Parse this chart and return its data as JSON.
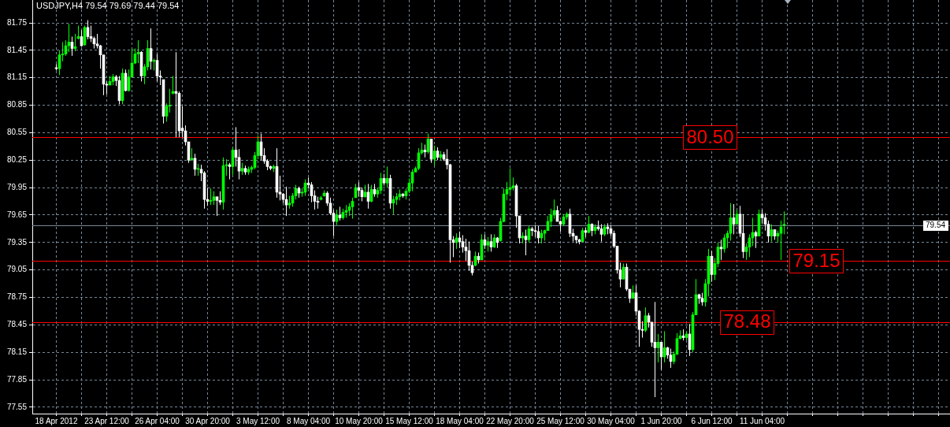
{
  "chart_data": {
    "type": "candlestick",
    "title": "USDJPY,H4 79.54 79.69 79.44 79.54",
    "grid": true,
    "ylim": [
      77.48,
      82.0
    ],
    "yticks": [
      77.55,
      77.85,
      78.15,
      78.45,
      78.75,
      79.05,
      79.35,
      79.65,
      79.95,
      80.25,
      80.55,
      80.85,
      81.15,
      81.45,
      81.75
    ],
    "ref_lines": [
      {
        "axis": "y",
        "value": 80.5,
        "label": "80.50",
        "color": "#ff0000"
      },
      {
        "axis": "y",
        "value": 79.54,
        "label": "79.54",
        "color": "#778899"
      },
      {
        "axis": "y",
        "value": 79.15,
        "label": "79.15",
        "color": "#ff0000"
      },
      {
        "axis": "y",
        "value": 78.48,
        "label": "78.48",
        "color": "#ff0000"
      }
    ],
    "categories": [
      "18 Apr 2012",
      null,
      null,
      null,
      null,
      null,
      null,
      null,
      null,
      null,
      null,
      null,
      null,
      null,
      null,
      null,
      "23 Apr 12:00",
      null,
      null,
      null,
      null,
      null,
      null,
      null,
      null,
      null,
      null,
      null,
      null,
      null,
      null,
      null,
      "26 Apr 04:00",
      null,
      null,
      null,
      null,
      null,
      null,
      null,
      null,
      null,
      null,
      null,
      null,
      null,
      null,
      null,
      "30 Apr 20:00",
      null,
      null,
      null,
      null,
      null,
      null,
      null,
      null,
      null,
      null,
      null,
      null,
      null,
      null,
      null,
      "3 May 12:00",
      null,
      null,
      null,
      null,
      null,
      null,
      null,
      null,
      null,
      null,
      null,
      null,
      null,
      null,
      null,
      "8 May 04:00",
      null,
      null,
      null,
      null,
      null,
      null,
      null,
      null,
      null,
      null,
      null,
      null,
      null,
      null,
      null,
      "10 May 20:00",
      null,
      null,
      null,
      null,
      null,
      null,
      null,
      null,
      null,
      null,
      null,
      null,
      null,
      null,
      null,
      "15 May 12:00",
      null,
      null,
      null,
      null,
      null,
      null,
      null,
      null,
      null,
      null,
      null,
      null,
      null,
      null,
      null,
      "18 May 04:00",
      null,
      null,
      null,
      null,
      null,
      null,
      null,
      null,
      null,
      null,
      null,
      null,
      null,
      null,
      null,
      "22 May 20:00",
      null,
      null,
      null,
      null,
      null,
      null,
      null,
      null,
      null,
      null,
      null,
      null,
      null,
      null,
      null,
      "25 May 12:00",
      null,
      null,
      null,
      null,
      null,
      null,
      null,
      null,
      null,
      null,
      null,
      null,
      null,
      null,
      null,
      "30 May 04:00",
      null,
      null,
      null,
      null,
      null,
      null,
      null,
      null,
      null,
      null,
      null,
      null,
      null,
      null,
      null,
      "1 Jun 20:00",
      null,
      null,
      null,
      null,
      null,
      null,
      null,
      null,
      null,
      null,
      null,
      null,
      null,
      null,
      null,
      "6 Jun 12:00",
      null,
      null,
      null,
      null,
      null,
      null,
      null,
      null,
      null,
      null,
      null,
      null,
      null,
      null,
      null,
      "11 Jun 04:00",
      null,
      null,
      null,
      null,
      null,
      null,
      null
    ],
    "colors": [
      "#ffffff",
      "#00ff00",
      "#00ff00",
      "#00ff00",
      "#00ff00",
      "#ffffff",
      "#00ff00",
      "#00ff00",
      "#ffffff",
      "#00ff00",
      "#ffffff",
      "#ffffff",
      "#ffffff",
      "#ffffff",
      "#ffffff",
      "#ffffff",
      "#ffffff",
      "#00ff00",
      "#00ff00",
      "#ffffff",
      "#ffffff",
      "#00ff00",
      "#ffffff",
      "#00ff00",
      "#00ff00",
      "#00ff00",
      "#00ff00",
      "#ffffff",
      "#00ff00",
      "#00ff00",
      "#ffffff",
      "#00ff00",
      "#ffffff",
      "#ffffff",
      "#ffffff",
      "#00ff00",
      "#00ff00",
      "#00ff00",
      "#ffffff",
      "#ffffff",
      "#ffffff",
      "#ffffff",
      "#ffffff",
      "#00ff00",
      "#ffffff",
      "#00ff00",
      "#ffffff",
      "#ffffff",
      "#ffffff",
      "#00ff00",
      "#00ff00",
      "#ffffff",
      "#ffffff",
      "#00ff00",
      "#00ff00",
      "#ffffff",
      "#00ff00",
      "#ffffff",
      "#ffffff",
      "#00ff00",
      "#ffffff",
      "#00ff00",
      "#00ff00",
      "#00ff00",
      "#00ff00",
      "#ffffff",
      "#ffffff",
      "#ffffff",
      "#ffffff",
      "#00ff00",
      "#ffffff",
      "#ffffff",
      "#ffffff",
      "#ffffff",
      "#00ff00",
      "#00ff00",
      "#00ff00",
      "#ffffff",
      "#00ff00",
      "#00ff00",
      "#ffffff",
      "#ffffff",
      "#ffffff",
      "#ffffff",
      "#00ff00",
      "#00ff00",
      "#ffffff",
      "#ffffff",
      "#ffffff",
      "#00ff00",
      "#ffffff",
      "#00ff00",
      "#00ff00",
      "#00ff00",
      "#00ff00",
      "#00ff00",
      "#ffffff",
      "#ffffff",
      "#00ff00",
      "#ffffff",
      "#00ff00",
      "#ffffff",
      "#00ff00",
      "#00ff00",
      "#ffffff",
      "#00ff00",
      "#ffffff",
      "#00ff00",
      "#00ff00",
      "#00ff00",
      "#ffffff",
      "#00ff00",
      "#00ff00",
      "#00ff00",
      "#00ff00",
      "#00ff00",
      "#00ff00",
      "#ffffff",
      "#00ff00",
      "#ffffff",
      "#00ff00",
      "#ffffff",
      "#00ff00",
      "#ffffff",
      "#ffffff",
      "#ffffff",
      "#ffffff",
      "#00ff00",
      "#ffffff",
      "#ffffff",
      "#ffffff",
      "#ffffff",
      "#ffffff",
      "#00ff00",
      "#ffffff",
      "#00ff00",
      "#ffffff",
      "#00ff00",
      "#ffffff",
      "#00ff00",
      "#ffffff",
      "#00ff00",
      "#00ff00",
      "#00ff00",
      "#00ff00",
      "#00ff00",
      "#ffffff",
      "#ffffff",
      "#00ff00",
      "#ffffff",
      "#00ff00",
      "#ffffff",
      "#ffffff",
      "#ffffff",
      "#00ff00",
      "#00ff00",
      "#00ff00",
      "#00ff00",
      "#00ff00",
      "#ffffff",
      "#ffffff",
      "#00ff00",
      "#00ff00",
      "#ffffff",
      "#ffffff",
      "#ffffff",
      "#ffffff",
      "#00ff00",
      "#ffffff",
      "#00ff00",
      "#ffffff",
      "#00ff00",
      "#ffffff",
      "#ffffff",
      "#00ff00",
      "#ffffff",
      "#ffffff",
      "#ffffff",
      "#ffffff",
      "#ffffff",
      "#00ff00",
      "#ffffff",
      "#ffffff",
      "#00ff00",
      "#ffffff",
      "#ffffff",
      "#ffffff",
      "#00ff00",
      "#ffffff",
      "#ffffff",
      "#ffffff",
      "#00ff00",
      "#ffffff",
      "#00ff00",
      "#ffffff",
      "#ffffff",
      "#00ff00",
      "#00ff00",
      "#00ff00",
      "#ffffff",
      "#00ff00",
      "#ffffff",
      "#00ff00",
      "#00ff00",
      "#ffffff",
      "#ffffff",
      "#00ff00",
      "#00ff00",
      "#ffffff",
      "#00ff00",
      "#00ff00",
      "#ffffff",
      "#00ff00",
      "#00ff00",
      "#00ff00",
      "#ffffff",
      "#00ff00",
      "#ffffff",
      "#ffffff",
      "#00ff00",
      "#00ff00",
      "#00ff00",
      "#ffffff",
      "#00ff00",
      "#ffffff",
      "#ffffff",
      "#ffffff",
      "#00ff00",
      "#ffffff",
      "#00ff00",
      "#00ff00",
      "#00ff00"
    ],
    "ohlc": [
      [
        81.26,
        81.3,
        81.23,
        81.25
      ],
      [
        81.25,
        81.45,
        81.18,
        81.4
      ],
      [
        81.4,
        81.54,
        81.33,
        81.41
      ],
      [
        81.41,
        81.56,
        81.39,
        81.5
      ],
      [
        81.5,
        81.74,
        81.43,
        81.54
      ],
      [
        81.54,
        81.6,
        81.39,
        81.47
      ],
      [
        81.47,
        81.63,
        81.44,
        81.49
      ],
      [
        81.58,
        81.72,
        81.57,
        81.6
      ],
      [
        81.6,
        81.67,
        81.49,
        81.5
      ],
      [
        81.51,
        81.72,
        81.5,
        81.7
      ],
      [
        81.7,
        81.78,
        81.57,
        81.6
      ],
      [
        81.6,
        81.72,
        81.54,
        81.58
      ],
      [
        81.58,
        81.6,
        81.47,
        81.52
      ],
      [
        81.52,
        81.63,
        81.47,
        81.5
      ],
      [
        81.5,
        81.51,
        81.25,
        81.4
      ],
      [
        81.4,
        81.4,
        80.96,
        81.08
      ],
      [
        81.08,
        81.11,
        80.97,
        81.07
      ],
      [
        81.07,
        81.17,
        81.07,
        81.11
      ],
      [
        81.11,
        81.19,
        81.07,
        81.16
      ],
      [
        81.16,
        81.18,
        81.06,
        81.12
      ],
      [
        81.12,
        81.17,
        80.86,
        80.9
      ],
      [
        80.9,
        81.25,
        80.86,
        81.2
      ],
      [
        81.2,
        81.24,
        81.0,
        81.01
      ],
      [
        81.01,
        81.24,
        81.0,
        81.16
      ],
      [
        81.16,
        81.47,
        81.16,
        81.31
      ],
      [
        81.31,
        81.47,
        81.3,
        81.41
      ],
      [
        81.41,
        81.56,
        81.31,
        81.43
      ],
      [
        81.43,
        81.44,
        81.11,
        81.17
      ],
      [
        81.17,
        81.3,
        81.08,
        81.27
      ],
      [
        81.27,
        81.56,
        81.23,
        81.47
      ],
      [
        81.47,
        81.69,
        81.24,
        81.33
      ],
      [
        81.33,
        81.36,
        81.23,
        81.34
      ],
      [
        81.34,
        81.41,
        81.11,
        81.17
      ],
      [
        81.17,
        81.23,
        81.07,
        81.16
      ],
      [
        81.13,
        81.13,
        80.65,
        80.73
      ],
      [
        80.73,
        80.87,
        80.67,
        80.84
      ],
      [
        80.84,
        81.03,
        80.77,
        80.85
      ],
      [
        80.98,
        81.17,
        80.97,
        81.0
      ],
      [
        81.0,
        81.43,
        80.5,
        80.98
      ],
      [
        80.98,
        81.0,
        80.5,
        80.57
      ],
      [
        80.6,
        80.84,
        80.5,
        80.57
      ],
      [
        80.57,
        80.63,
        80.41,
        80.45
      ],
      [
        80.45,
        80.45,
        80.22,
        80.25
      ],
      [
        80.25,
        80.38,
        80.25,
        80.27
      ],
      [
        80.27,
        80.32,
        80.08,
        80.15
      ],
      [
        80.15,
        80.21,
        80.08,
        80.15
      ],
      [
        80.15,
        80.2,
        80.02,
        80.11
      ],
      [
        80.11,
        80.13,
        79.72,
        79.82
      ],
      [
        79.82,
        79.95,
        79.75,
        79.8
      ],
      [
        79.8,
        79.94,
        79.76,
        79.81
      ],
      [
        79.81,
        79.91,
        79.76,
        79.85
      ],
      [
        79.85,
        79.85,
        79.64,
        79.81
      ],
      [
        79.81,
        79.91,
        79.76,
        79.79
      ],
      [
        79.79,
        80.28,
        79.71,
        80.19
      ],
      [
        80.19,
        80.26,
        80.08,
        80.2
      ],
      [
        80.2,
        80.22,
        80.04,
        80.18
      ],
      [
        80.18,
        80.39,
        80.09,
        80.36
      ],
      [
        80.36,
        80.61,
        80.18,
        80.28
      ],
      [
        80.28,
        80.37,
        80.04,
        80.13
      ],
      [
        80.13,
        80.22,
        80.09,
        80.16
      ],
      [
        80.16,
        80.19,
        80.09,
        80.12
      ],
      [
        80.12,
        80.18,
        80.09,
        80.15
      ],
      [
        80.15,
        80.19,
        80.11,
        80.17
      ],
      [
        80.17,
        80.34,
        80.15,
        80.3
      ],
      [
        80.3,
        80.52,
        80.26,
        80.45
      ],
      [
        80.45,
        80.54,
        80.25,
        80.3
      ],
      [
        80.3,
        80.38,
        80.21,
        80.24
      ],
      [
        80.24,
        80.26,
        80.14,
        80.18
      ],
      [
        80.18,
        80.19,
        80.14,
        80.16
      ],
      [
        80.16,
        80.2,
        80.12,
        80.18
      ],
      [
        80.18,
        80.38,
        79.84,
        79.9
      ],
      [
        79.9,
        80.08,
        79.81,
        79.88
      ],
      [
        79.88,
        79.89,
        79.78,
        79.82
      ],
      [
        79.82,
        79.96,
        79.64,
        79.76
      ],
      [
        79.76,
        79.86,
        79.72,
        79.78
      ],
      [
        79.78,
        79.89,
        79.74,
        79.86
      ],
      [
        79.86,
        79.98,
        79.82,
        79.94
      ],
      [
        79.94,
        79.96,
        79.84,
        79.89
      ],
      [
        79.89,
        79.94,
        79.85,
        79.9
      ],
      [
        79.9,
        80.04,
        79.86,
        80.0
      ],
      [
        80.0,
        80.06,
        79.94,
        79.98
      ],
      [
        79.98,
        80.01,
        79.79,
        79.86
      ],
      [
        79.86,
        79.92,
        79.71,
        79.8
      ],
      [
        79.8,
        79.85,
        79.72,
        79.79
      ],
      [
        79.82,
        79.86,
        79.81,
        79.84
      ],
      [
        79.86,
        79.92,
        79.85,
        79.89
      ],
      [
        79.89,
        79.91,
        79.75,
        79.78
      ],
      [
        79.78,
        79.84,
        79.65,
        79.67
      ],
      [
        79.67,
        79.71,
        79.42,
        79.58
      ],
      [
        79.58,
        79.71,
        79.54,
        79.65
      ],
      [
        79.65,
        79.74,
        79.59,
        79.62
      ],
      [
        79.62,
        79.72,
        79.6,
        79.68
      ],
      [
        79.68,
        79.76,
        79.62,
        79.7
      ],
      [
        79.7,
        79.78,
        79.64,
        79.74
      ],
      [
        79.74,
        79.84,
        79.61,
        79.8
      ],
      [
        79.84,
        79.99,
        79.84,
        79.95
      ],
      [
        79.95,
        80.01,
        79.85,
        79.92
      ],
      [
        79.92,
        79.95,
        79.8,
        79.85
      ],
      [
        79.85,
        79.98,
        79.84,
        79.9
      ],
      [
        79.9,
        79.99,
        79.72,
        79.8
      ],
      [
        79.8,
        79.98,
        79.79,
        79.93
      ],
      [
        79.93,
        79.99,
        79.85,
        79.88
      ],
      [
        79.88,
        79.95,
        79.84,
        79.92
      ],
      [
        79.92,
        80.11,
        79.88,
        80.05
      ],
      [
        80.05,
        80.1,
        79.98,
        80.0
      ],
      [
        80.0,
        80.18,
        79.95,
        80.05
      ],
      [
        80.05,
        80.09,
        79.72,
        79.78
      ],
      [
        79.78,
        79.86,
        79.66,
        79.82
      ],
      [
        79.82,
        79.89,
        79.76,
        79.85
      ],
      [
        79.85,
        79.93,
        79.81,
        79.88
      ],
      [
        79.88,
        79.89,
        79.84,
        79.86
      ],
      [
        79.86,
        79.94,
        79.82,
        79.91
      ],
      [
        79.91,
        80.05,
        79.89,
        80.0
      ],
      [
        80.0,
        80.15,
        79.91,
        80.12
      ],
      [
        80.12,
        80.18,
        80.12,
        80.16
      ],
      [
        80.16,
        80.38,
        80.14,
        80.33
      ],
      [
        80.33,
        80.44,
        80.31,
        80.36
      ],
      [
        80.36,
        80.42,
        80.28,
        80.34
      ],
      [
        80.34,
        80.54,
        80.32,
        80.48
      ],
      [
        80.48,
        80.48,
        80.22,
        80.26
      ],
      [
        80.26,
        80.41,
        80.19,
        80.35
      ],
      [
        80.35,
        80.39,
        80.25,
        80.28
      ],
      [
        80.28,
        80.35,
        80.25,
        80.31
      ],
      [
        80.31,
        80.34,
        80.24,
        80.26
      ],
      [
        80.26,
        80.37,
        80.15,
        80.2
      ],
      [
        80.2,
        80.21,
        79.13,
        79.38
      ],
      [
        79.38,
        79.42,
        79.19,
        79.35
      ],
      [
        79.35,
        79.45,
        79.28,
        79.4
      ],
      [
        79.4,
        79.47,
        79.29,
        79.36
      ],
      [
        79.36,
        79.43,
        79.24,
        79.3
      ],
      [
        79.3,
        79.39,
        79.15,
        79.26
      ],
      [
        79.26,
        79.36,
        79.04,
        79.1
      ],
      [
        79.1,
        79.14,
        78.99,
        79.02
      ],
      [
        79.1,
        79.25,
        79.09,
        79.2
      ],
      [
        79.2,
        79.24,
        79.12,
        79.16
      ],
      [
        79.16,
        79.44,
        79.16,
        79.38
      ],
      [
        79.38,
        79.44,
        79.28,
        79.32
      ],
      [
        79.32,
        79.41,
        79.25,
        79.36
      ],
      [
        79.36,
        79.44,
        79.25,
        79.3
      ],
      [
        79.3,
        79.44,
        79.29,
        79.4
      ],
      [
        79.4,
        79.41,
        79.29,
        79.35
      ],
      [
        79.37,
        79.62,
        79.36,
        79.58
      ],
      [
        79.58,
        79.94,
        79.57,
        79.88
      ],
      [
        79.88,
        80.01,
        79.81,
        79.93
      ],
      [
        79.93,
        80.16,
        79.86,
        79.95
      ],
      [
        79.95,
        80.06,
        79.92,
        79.97
      ],
      [
        79.97,
        79.99,
        79.51,
        79.64
      ],
      [
        79.64,
        79.64,
        79.34,
        79.4
      ],
      [
        79.4,
        79.46,
        79.34,
        79.42
      ],
      [
        79.42,
        79.49,
        79.21,
        79.38
      ],
      [
        79.38,
        79.53,
        79.35,
        79.5
      ],
      [
        79.5,
        79.52,
        79.42,
        79.48
      ],
      [
        79.48,
        79.54,
        79.41,
        79.47
      ],
      [
        79.47,
        79.53,
        79.34,
        79.4
      ],
      [
        79.4,
        79.49,
        79.34,
        79.45
      ],
      [
        79.45,
        79.49,
        79.37,
        79.48
      ],
      [
        79.48,
        79.64,
        79.48,
        79.58
      ],
      [
        79.58,
        79.72,
        79.52,
        79.65
      ],
      [
        79.65,
        79.82,
        79.61,
        79.7
      ],
      [
        79.7,
        79.75,
        79.58,
        79.58
      ],
      [
        79.58,
        79.59,
        79.47,
        79.55
      ],
      [
        79.55,
        79.66,
        79.53,
        79.63
      ],
      [
        79.63,
        79.68,
        79.6,
        79.66
      ],
      [
        79.66,
        79.72,
        79.41,
        79.45
      ],
      [
        79.45,
        79.5,
        79.36,
        79.42
      ],
      [
        79.42,
        79.42,
        79.34,
        79.38
      ],
      [
        79.38,
        79.39,
        79.33,
        79.36
      ],
      [
        79.36,
        79.51,
        79.36,
        79.48
      ],
      [
        79.48,
        79.51,
        79.41,
        79.46
      ],
      [
        79.46,
        79.64,
        79.45,
        79.55
      ],
      [
        79.55,
        79.56,
        79.42,
        79.48
      ],
      [
        79.48,
        79.55,
        79.44,
        79.52
      ],
      [
        79.52,
        79.59,
        79.48,
        79.5
      ],
      [
        79.5,
        79.55,
        79.36,
        79.44
      ],
      [
        79.44,
        79.55,
        79.42,
        79.52
      ],
      [
        79.52,
        79.56,
        79.44,
        79.5
      ],
      [
        79.5,
        79.54,
        79.42,
        79.45
      ],
      [
        79.45,
        79.48,
        79.29,
        79.31
      ],
      [
        79.31,
        79.31,
        79.01,
        79.05
      ],
      [
        79.05,
        79.13,
        78.86,
        78.95
      ],
      [
        78.95,
        79.12,
        78.95,
        79.08
      ],
      [
        79.08,
        79.12,
        78.82,
        78.84
      ],
      [
        78.84,
        78.84,
        78.69,
        78.74
      ],
      [
        78.74,
        78.88,
        78.74,
        78.8
      ],
      [
        78.8,
        78.88,
        78.55,
        78.6
      ],
      [
        78.6,
        78.61,
        78.21,
        78.4
      ],
      [
        78.4,
        78.49,
        78.31,
        78.39
      ],
      [
        78.39,
        78.64,
        78.37,
        78.55
      ],
      [
        78.55,
        78.58,
        78.42,
        78.48
      ],
      [
        78.48,
        78.48,
        78.21,
        78.26
      ],
      [
        78.26,
        78.7,
        77.66,
        78.2
      ],
      [
        78.2,
        78.35,
        78.04,
        78.26
      ],
      [
        78.26,
        78.26,
        77.96,
        78.1
      ],
      [
        78.1,
        78.38,
        78.04,
        78.2
      ],
      [
        78.2,
        78.21,
        78.08,
        78.12
      ],
      [
        78.12,
        78.19,
        77.98,
        78.05
      ],
      [
        78.05,
        78.16,
        78.02,
        78.13
      ],
      [
        78.13,
        78.36,
        78.12,
        78.3
      ],
      [
        78.3,
        78.39,
        78.29,
        78.33
      ],
      [
        78.33,
        78.4,
        78.28,
        78.31
      ],
      [
        78.31,
        78.38,
        78.28,
        78.35
      ],
      [
        78.35,
        78.46,
        78.11,
        78.18
      ],
      [
        78.18,
        78.59,
        78.15,
        78.56
      ],
      [
        78.56,
        78.95,
        78.56,
        78.78
      ],
      [
        78.78,
        78.79,
        78.68,
        78.74
      ],
      [
        78.74,
        78.8,
        78.66,
        78.7
      ],
      [
        78.7,
        78.95,
        78.65,
        78.9
      ],
      [
        78.9,
        79.28,
        78.76,
        79.2
      ],
      [
        79.2,
        79.26,
        78.92,
        79.0
      ],
      [
        79.0,
        79.18,
        78.94,
        79.12
      ],
      [
        79.12,
        79.35,
        79.08,
        79.3
      ],
      [
        79.3,
        79.38,
        79.16,
        79.28
      ],
      [
        79.28,
        79.44,
        79.24,
        79.4
      ],
      [
        79.4,
        79.48,
        79.29,
        79.45
      ],
      [
        79.45,
        79.78,
        79.37,
        79.62
      ],
      [
        79.62,
        79.77,
        79.44,
        79.55
      ],
      [
        79.55,
        79.71,
        79.55,
        79.66
      ],
      [
        79.66,
        79.75,
        79.41,
        79.45
      ],
      [
        79.45,
        79.66,
        79.18,
        79.25
      ],
      [
        79.25,
        79.34,
        79.16,
        79.3
      ],
      [
        79.3,
        79.44,
        79.19,
        79.4
      ],
      [
        79.4,
        79.62,
        79.31,
        79.46
      ],
      [
        79.46,
        79.48,
        79.29,
        79.42
      ],
      [
        79.42,
        79.71,
        79.42,
        79.66
      ],
      [
        79.66,
        79.71,
        79.56,
        79.62
      ],
      [
        79.62,
        79.67,
        79.48,
        79.55
      ],
      [
        79.55,
        79.59,
        79.35,
        79.42
      ],
      [
        79.42,
        79.55,
        79.36,
        79.49
      ],
      [
        79.49,
        79.49,
        79.38,
        79.42
      ],
      [
        79.42,
        79.48,
        79.35,
        79.45
      ],
      [
        79.45,
        79.59,
        79.16,
        79.52
      ],
      [
        79.54,
        79.69,
        79.44,
        79.54
      ]
    ]
  }
}
